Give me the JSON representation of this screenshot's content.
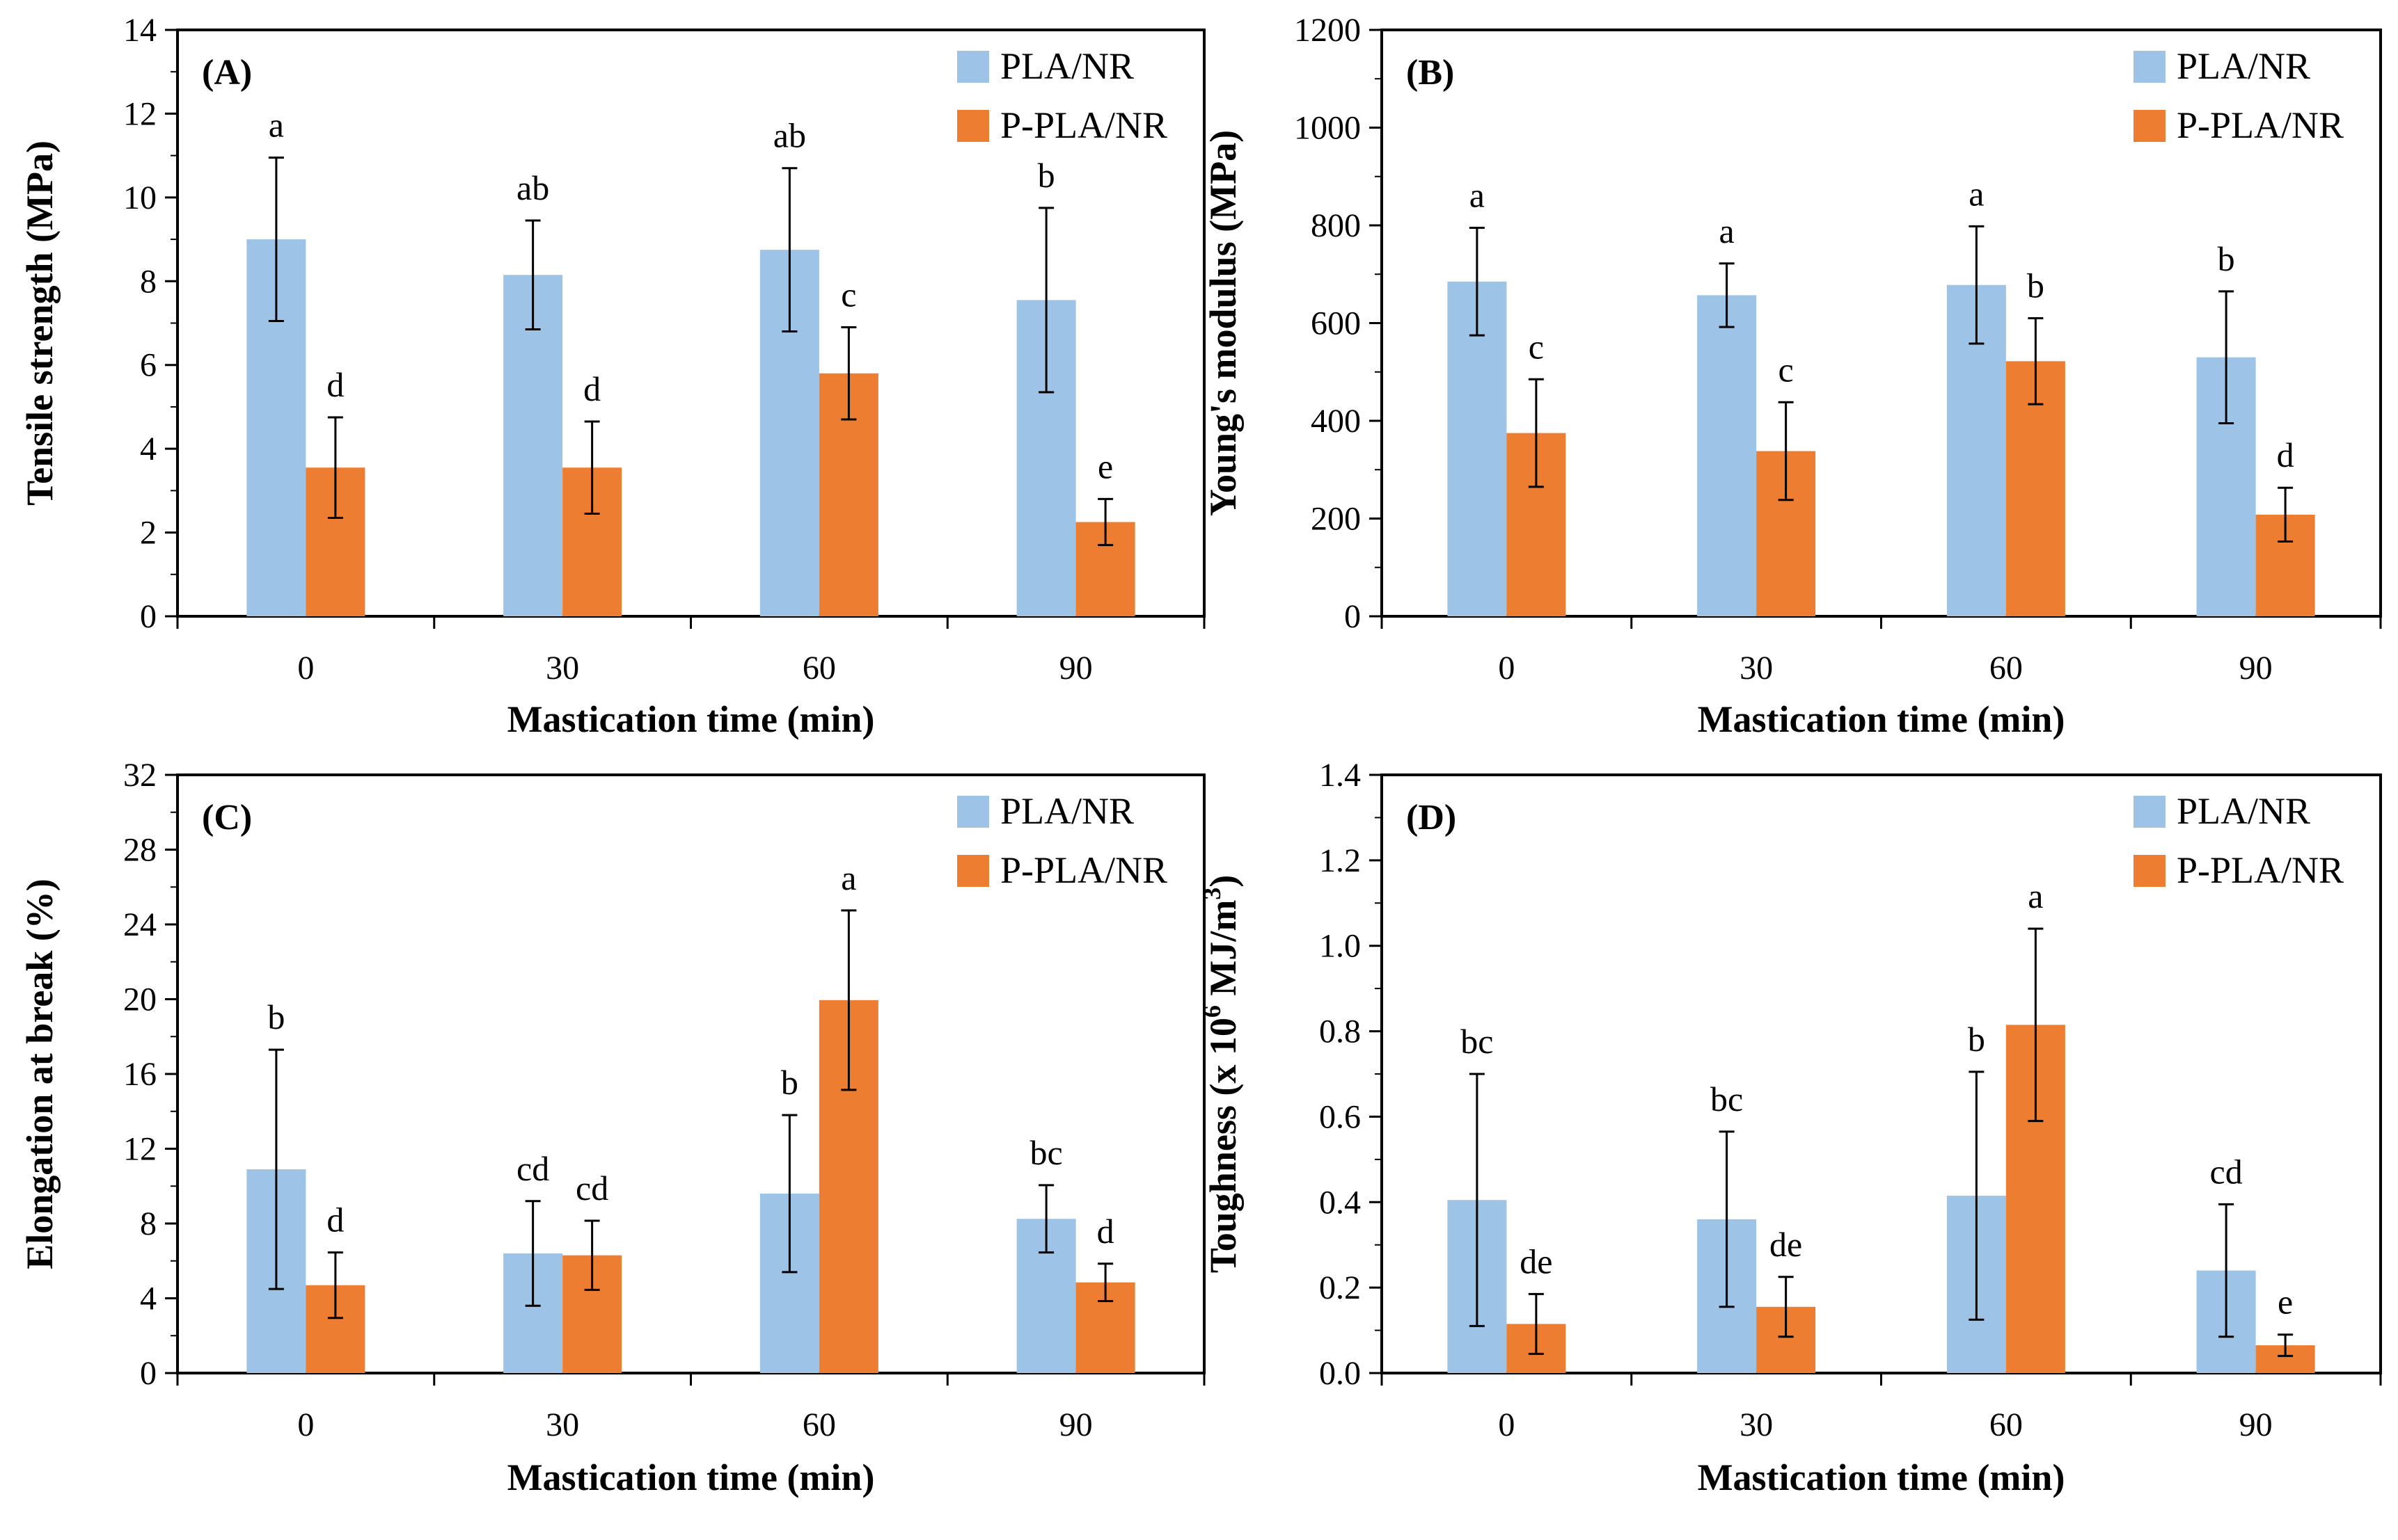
{
  "colors": {
    "series_1": "#9dc3e6",
    "series_2": "#ed7d31",
    "axis": "#000000",
    "frame": "#000000"
  },
  "chart_data": [
    {
      "type": "bar",
      "panel_label": "(A)",
      "xlabel": "Mastication time (min)",
      "ylabel": "Tensile strength (MPa)",
      "ylim": [
        0,
        14
      ],
      "ytick_step": 2,
      "ytick_labels": [
        "0",
        "2",
        "4",
        "6",
        "8",
        "10",
        "12",
        "14"
      ],
      "categories": [
        "0",
        "30",
        "60",
        "90"
      ],
      "legend_position": "top-right",
      "series": [
        {
          "name": "PLA/NR",
          "values": [
            9.0,
            8.15,
            8.75,
            7.55
          ],
          "errors": [
            1.95,
            1.3,
            1.95,
            2.2
          ],
          "letters": [
            "a",
            "ab",
            "ab",
            "b"
          ]
        },
        {
          "name": "P-PLA/NR",
          "values": [
            3.55,
            3.55,
            5.8,
            2.25
          ],
          "errors": [
            1.2,
            1.1,
            1.1,
            0.55
          ],
          "letters": [
            "d",
            "d",
            "c",
            "e"
          ]
        }
      ]
    },
    {
      "type": "bar",
      "panel_label": "(B)",
      "xlabel": "Mastication time (min)",
      "ylabel": "Young's modulus (MPa)",
      "ylim": [
        0,
        1200
      ],
      "ytick_step": 200,
      "ytick_labels": [
        "0",
        "200",
        "400",
        "600",
        "800",
        "1000",
        "1200"
      ],
      "categories": [
        "0",
        "30",
        "60",
        "90"
      ],
      "legend_position": "top-right",
      "series": [
        {
          "name": "PLA/NR",
          "values": [
            685,
            657,
            678,
            530
          ],
          "errors": [
            110,
            65,
            120,
            135
          ],
          "letters": [
            "a",
            "a",
            "a",
            "b"
          ]
        },
        {
          "name": "P-PLA/NR",
          "values": [
            375,
            338,
            522,
            208
          ],
          "errors": [
            110,
            100,
            88,
            55
          ],
          "letters": [
            "c",
            "c",
            "b",
            "d"
          ]
        }
      ]
    },
    {
      "type": "bar",
      "panel_label": "(C)",
      "xlabel": "Mastication time (min)",
      "ylabel": "Elongation at break (%)",
      "ylim": [
        0,
        32
      ],
      "ytick_step": 4,
      "ytick_labels": [
        "0",
        "4",
        "8",
        "12",
        "16",
        "20",
        "24",
        "28",
        "32"
      ],
      "categories": [
        "0",
        "30",
        "60",
        "90"
      ],
      "legend_position": "top-right",
      "series": [
        {
          "name": "PLA/NR",
          "values": [
            10.9,
            6.4,
            9.6,
            8.25
          ],
          "errors": [
            6.4,
            2.8,
            4.2,
            1.8
          ],
          "letters": [
            "b",
            "cd",
            "b",
            "bc"
          ]
        },
        {
          "name": "P-PLA/NR",
          "values": [
            4.7,
            6.3,
            19.95,
            4.85
          ],
          "errors": [
            1.75,
            1.85,
            4.8,
            1.0
          ],
          "letters": [
            "d",
            "cd",
            "a",
            "d"
          ]
        }
      ]
    },
    {
      "type": "bar",
      "panel_label": "(D)",
      "xlabel": "Mastication time (min)",
      "ylabel_main": "Toughness (x 10",
      "ylabel_exp": "6",
      "ylabel_unit": " MJ/m",
      "ylabel_unit_exp": "3",
      "ylabel_close": ")",
      "ylim": [
        0,
        1.4
      ],
      "ytick_step": 0.2,
      "ytick_labels": [
        "0.0",
        "0.2",
        "0.4",
        "0.6",
        "0.8",
        "1.0",
        "1.2",
        "1.4"
      ],
      "categories": [
        "0",
        "30",
        "60",
        "90"
      ],
      "legend_position": "top-right",
      "series": [
        {
          "name": "PLA/NR",
          "values": [
            0.405,
            0.36,
            0.415,
            0.24
          ],
          "errors": [
            0.295,
            0.205,
            0.29,
            0.155
          ],
          "letters": [
            "bc",
            "bc",
            "b",
            "cd"
          ]
        },
        {
          "name": "P-PLA/NR",
          "values": [
            0.115,
            0.155,
            0.815,
            0.065
          ],
          "errors": [
            0.07,
            0.07,
            0.225,
            0.025
          ],
          "letters": [
            "de",
            "de",
            "a",
            "e"
          ]
        }
      ]
    }
  ]
}
